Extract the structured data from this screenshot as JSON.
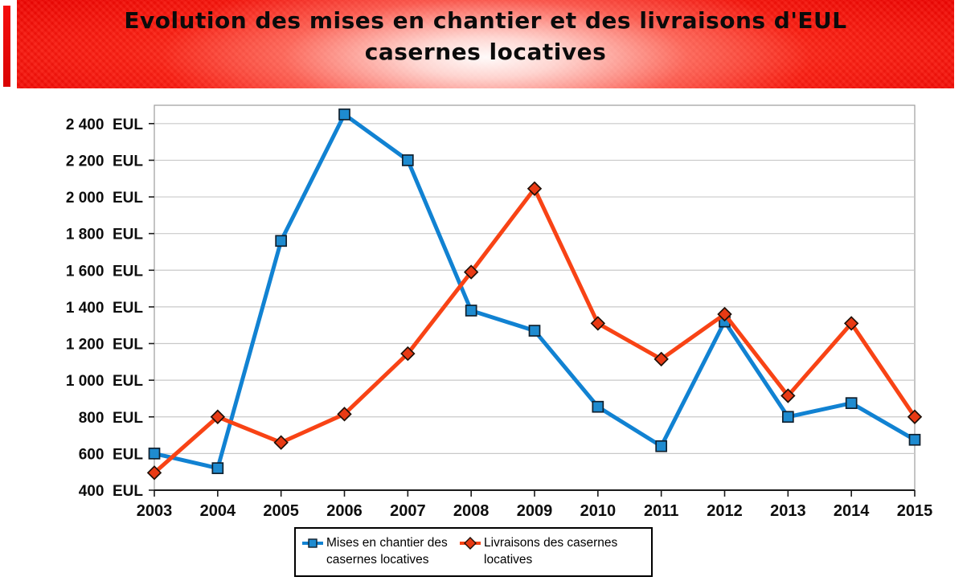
{
  "banner": {
    "title_line1": "Evolution des mises en chantier et des livraisons d'EUL",
    "title_line2": "casernes locatives",
    "bg_color": "#f21408",
    "text_color": "#0b0b0b"
  },
  "chart_data": {
    "type": "line",
    "title": "Evolution des mises en chantier et des livraisons d'EUL casernes locatives",
    "x": [
      "2003",
      "2004",
      "2005",
      "2006",
      "2007",
      "2008",
      "2009",
      "2010",
      "2011",
      "2012",
      "2013",
      "2014",
      "2015"
    ],
    "series": [
      {
        "name": "Mises en chantier des casernes locatives",
        "marker": "square",
        "color": "#1182D2",
        "marker_fill": "#1E8BD0",
        "values": [
          600,
          520,
          1760,
          2450,
          2200,
          1380,
          1270,
          855,
          640,
          1320,
          800,
          875,
          675
        ]
      },
      {
        "name": "Livraisons des casernes locatives",
        "marker": "diamond",
        "color": "#F84315",
        "marker_fill": "#E93A14",
        "values": [
          495,
          800,
          660,
          815,
          1145,
          1590,
          2045,
          1310,
          1115,
          1360,
          915,
          1310,
          800
        ]
      }
    ],
    "ylabel": "",
    "xlabel": "",
    "ylim": [
      400,
      2500
    ],
    "ytick_values": [
      400,
      600,
      800,
      1000,
      1200,
      1400,
      1600,
      1800,
      2000,
      2200,
      2400
    ],
    "ytick_labels": [
      "400  EUL",
      "600  EUL",
      "800  EUL",
      "1 000  EUL",
      "1 200  EUL",
      "1 400  EUL",
      "1 600  EUL",
      "1 800  EUL",
      "2 000  EUL",
      "2 200  EUL",
      "2 400  EUL"
    ],
    "grid": true,
    "grid_color": "#C9C9C9",
    "border_color": "#9C9C9C",
    "axis_color": "#1A1A1A",
    "legend_position": "bottom"
  }
}
